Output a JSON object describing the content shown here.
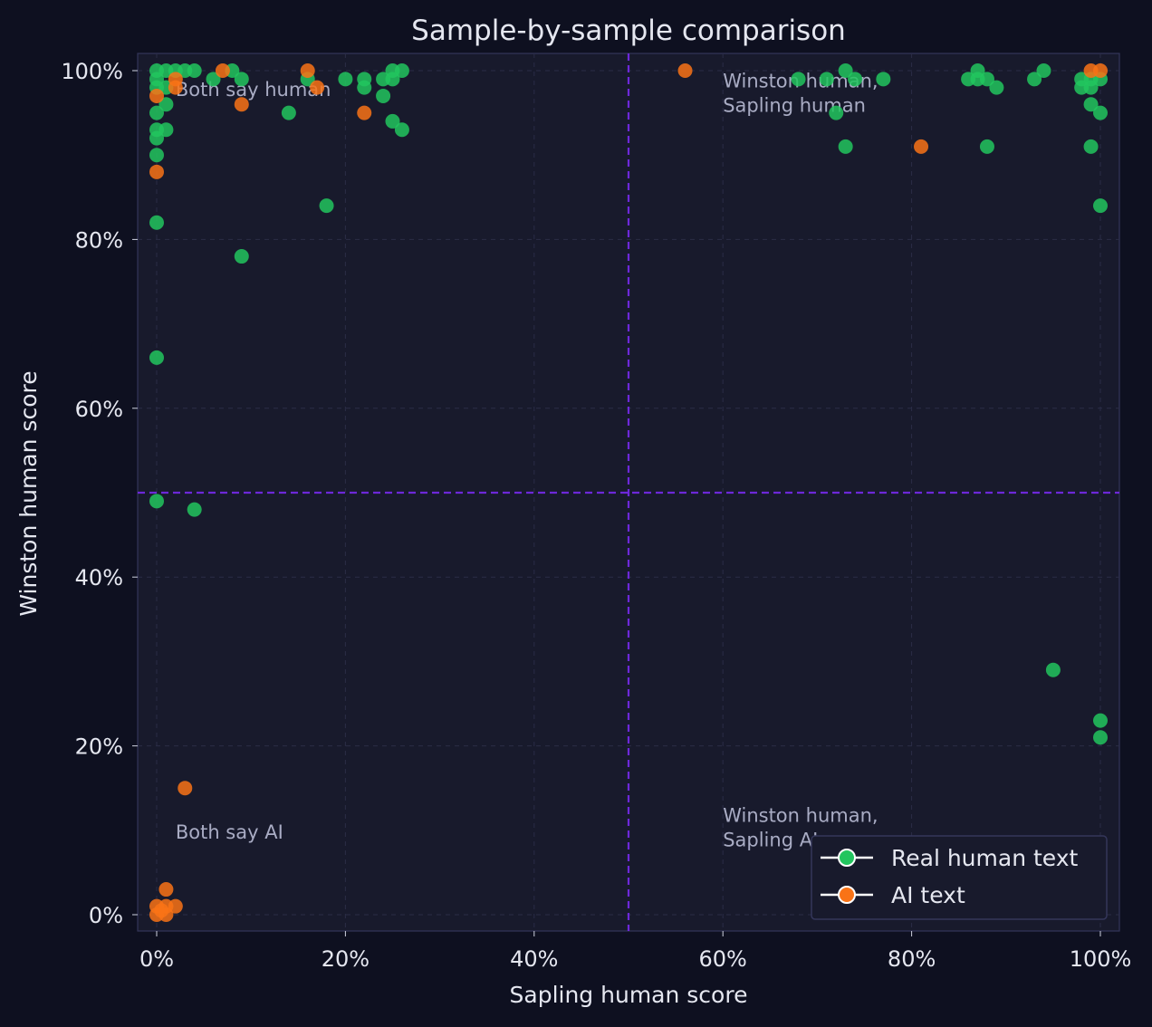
{
  "chart_data": {
    "type": "scatter",
    "title": "Sample-by-sample comparison",
    "xlabel": "Sapling human score",
    "ylabel": "Winston human score",
    "xlim": [
      -2,
      102
    ],
    "ylim": [
      -2,
      102
    ],
    "x_ticks": [
      0,
      20,
      40,
      60,
      80,
      100
    ],
    "y_ticks": [
      0,
      20,
      40,
      60,
      80,
      100
    ],
    "x_tick_labels": [
      "0%",
      "20%",
      "40%",
      "60%",
      "80%",
      "100%"
    ],
    "y_tick_labels": [
      "0%",
      "20%",
      "40%",
      "60%",
      "80%",
      "100%"
    ],
    "grid": true,
    "threshold_lines": {
      "x": 50,
      "y": 50,
      "color": "#6d28d9"
    },
    "annotations": [
      {
        "text": "Both say human",
        "x": 2,
        "y": 97
      },
      {
        "text": "Winston human,\nSapling human",
        "x": 60,
        "y": 98
      },
      {
        "text": "Both say AI",
        "x": 2,
        "y": 9
      },
      {
        "text": "Winston human,\nSapling AI",
        "x": 60,
        "y": 11
      }
    ],
    "legend": {
      "position": "bottom-right"
    },
    "series": [
      {
        "name": "Real human text",
        "color": "#22c55e",
        "points": [
          [
            0,
            100
          ],
          [
            0,
            99
          ],
          [
            0,
            98
          ],
          [
            0,
            95
          ],
          [
            0,
            93
          ],
          [
            0,
            92
          ],
          [
            0,
            90
          ],
          [
            0,
            82
          ],
          [
            0,
            66
          ],
          [
            0,
            49
          ],
          [
            1,
            100
          ],
          [
            2,
            100
          ],
          [
            3,
            100
          ],
          [
            4,
            100
          ],
          [
            1,
            98
          ],
          [
            1,
            96
          ],
          [
            1,
            93
          ],
          [
            6,
            99
          ],
          [
            8,
            100
          ],
          [
            9,
            99
          ],
          [
            9,
            78
          ],
          [
            14,
            95
          ],
          [
            16,
            99
          ],
          [
            18,
            84
          ],
          [
            20,
            99
          ],
          [
            22,
            99
          ],
          [
            22,
            98
          ],
          [
            24,
            99
          ],
          [
            24,
            97
          ],
          [
            25,
            100
          ],
          [
            25,
            99
          ],
          [
            25,
            94
          ],
          [
            26,
            100
          ],
          [
            26,
            93
          ],
          [
            4,
            48
          ],
          [
            68,
            99
          ],
          [
            71,
            99
          ],
          [
            73,
            100
          ],
          [
            74,
            99
          ],
          [
            77,
            99
          ],
          [
            72,
            95
          ],
          [
            73,
            91
          ],
          [
            86,
            99
          ],
          [
            87,
            100
          ],
          [
            87,
            99
          ],
          [
            88,
            99
          ],
          [
            89,
            98
          ],
          [
            88,
            91
          ],
          [
            93,
            99
          ],
          [
            94,
            100
          ],
          [
            98,
            99
          ],
          [
            98,
            98
          ],
          [
            99,
            99
          ],
          [
            99,
            98
          ],
          [
            99,
            96
          ],
          [
            99,
            91
          ],
          [
            100,
            99
          ],
          [
            100,
            95
          ],
          [
            100,
            84
          ],
          [
            95,
            29
          ],
          [
            100,
            23
          ],
          [
            100,
            21
          ]
        ]
      },
      {
        "name": "AI text",
        "color": "#f97316",
        "points": [
          [
            0,
            97
          ],
          [
            0,
            88
          ],
          [
            2,
            99
          ],
          [
            2,
            98
          ],
          [
            7,
            100
          ],
          [
            9,
            96
          ],
          [
            16,
            100
          ],
          [
            17,
            98
          ],
          [
            22,
            95
          ],
          [
            56,
            100
          ],
          [
            81,
            91
          ],
          [
            99,
            100
          ],
          [
            100,
            100
          ],
          [
            3,
            15
          ],
          [
            1,
            3
          ],
          [
            0,
            1
          ],
          [
            0,
            0
          ],
          [
            1,
            0
          ],
          [
            1,
            1
          ],
          [
            2,
            1
          ],
          [
            0.5,
            0.5
          ]
        ]
      }
    ]
  }
}
